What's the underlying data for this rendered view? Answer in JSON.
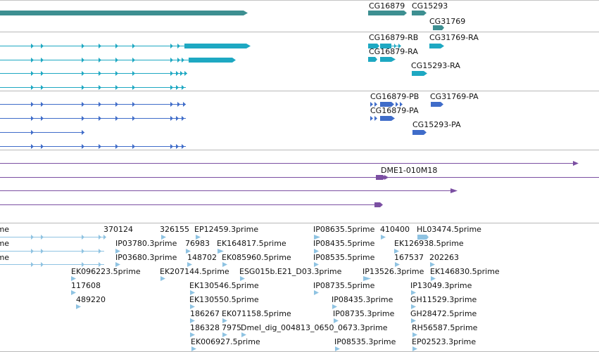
{
  "colors": {
    "gene": "#3d8f91",
    "transcript": "#1ea8c2",
    "cds": "#3f6cc9",
    "match": "#7b4fa2",
    "est": "#8fc3e2",
    "divider": "#b8b8b8"
  },
  "tracks": {
    "genes": {
      "labels": [
        "CG16879",
        "CG15293",
        "CG31769"
      ]
    },
    "transcripts": {
      "labels": [
        "CG16879-RB",
        "CG31769-RA",
        "CG16879-RA",
        "CG15293-RA"
      ]
    },
    "cds": {
      "labels": [
        "CG16879-PB",
        "CG31769-PA",
        "CG16879-PA",
        "CG15293-PA"
      ]
    },
    "matches": {
      "labels": [
        "DME1-010M18"
      ]
    },
    "ests": {
      "labels": [
        "rime",
        "rime",
        "rime",
        "370124",
        "326155",
        "EP12459.3prime",
        "IP08635.5prime",
        "410400",
        "HL03474.5prime",
        "IP03780.3prime",
        "76983",
        "EK164817.5prime",
        "IP08435.5prime",
        "EK126938.5prime",
        "IP03680.3prime",
        "148702",
        "EK085960.5prime",
        "IP08535.5prime",
        "167537",
        "202263",
        "EK096223.5prime",
        "EK207144.5prime",
        "ESG015b.E21_D03.3prime",
        "IP13526.3prime",
        "EK146830.5prime",
        "117608",
        "EK130546.5prime",
        "IP08735.5prime",
        "IP13049.3prime",
        "489220",
        "EK130550.5prime",
        "IP08435.3prime",
        "GH11529.3prime",
        "186267",
        "EK071158.5prime",
        "IP08735.3prime",
        "GH28472.5prime",
        "186328",
        "7975",
        "Dmel_dig_004813_0650_0673.3prime",
        "RH56587.5prime",
        "EK006927.5prime",
        "IP08535.3prime",
        "EP02523.3prime"
      ]
    }
  }
}
